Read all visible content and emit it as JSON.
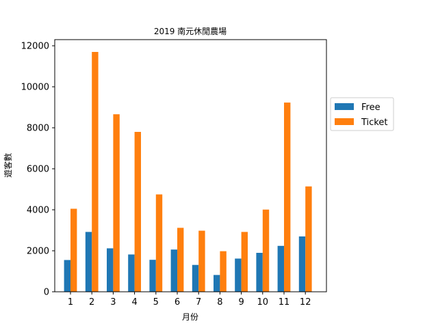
{
  "chart_data": {
    "type": "bar",
    "title": "2019 南元休閒農場",
    "xlabel": "月份",
    "ylabel": "遊客數",
    "categories": [
      "1",
      "2",
      "3",
      "4",
      "5",
      "6",
      "7",
      "8",
      "9",
      "10",
      "11",
      "12"
    ],
    "series": [
      {
        "name": "Free",
        "color": "#1f77b4",
        "values": [
          1550,
          2920,
          2120,
          1820,
          1560,
          2060,
          1310,
          820,
          1620,
          1900,
          2240,
          2700
        ]
      },
      {
        "name": "Ticket",
        "color": "#ff7f0e",
        "values": [
          4050,
          11700,
          8660,
          7800,
          4750,
          3120,
          2980,
          1980,
          2920,
          4010,
          9230,
          5140
        ]
      }
    ],
    "ylim": [
      0,
      12300
    ],
    "yticks": [
      0,
      2000,
      4000,
      6000,
      8000,
      10000,
      12000
    ],
    "grid": false,
    "legend_position": "right"
  }
}
